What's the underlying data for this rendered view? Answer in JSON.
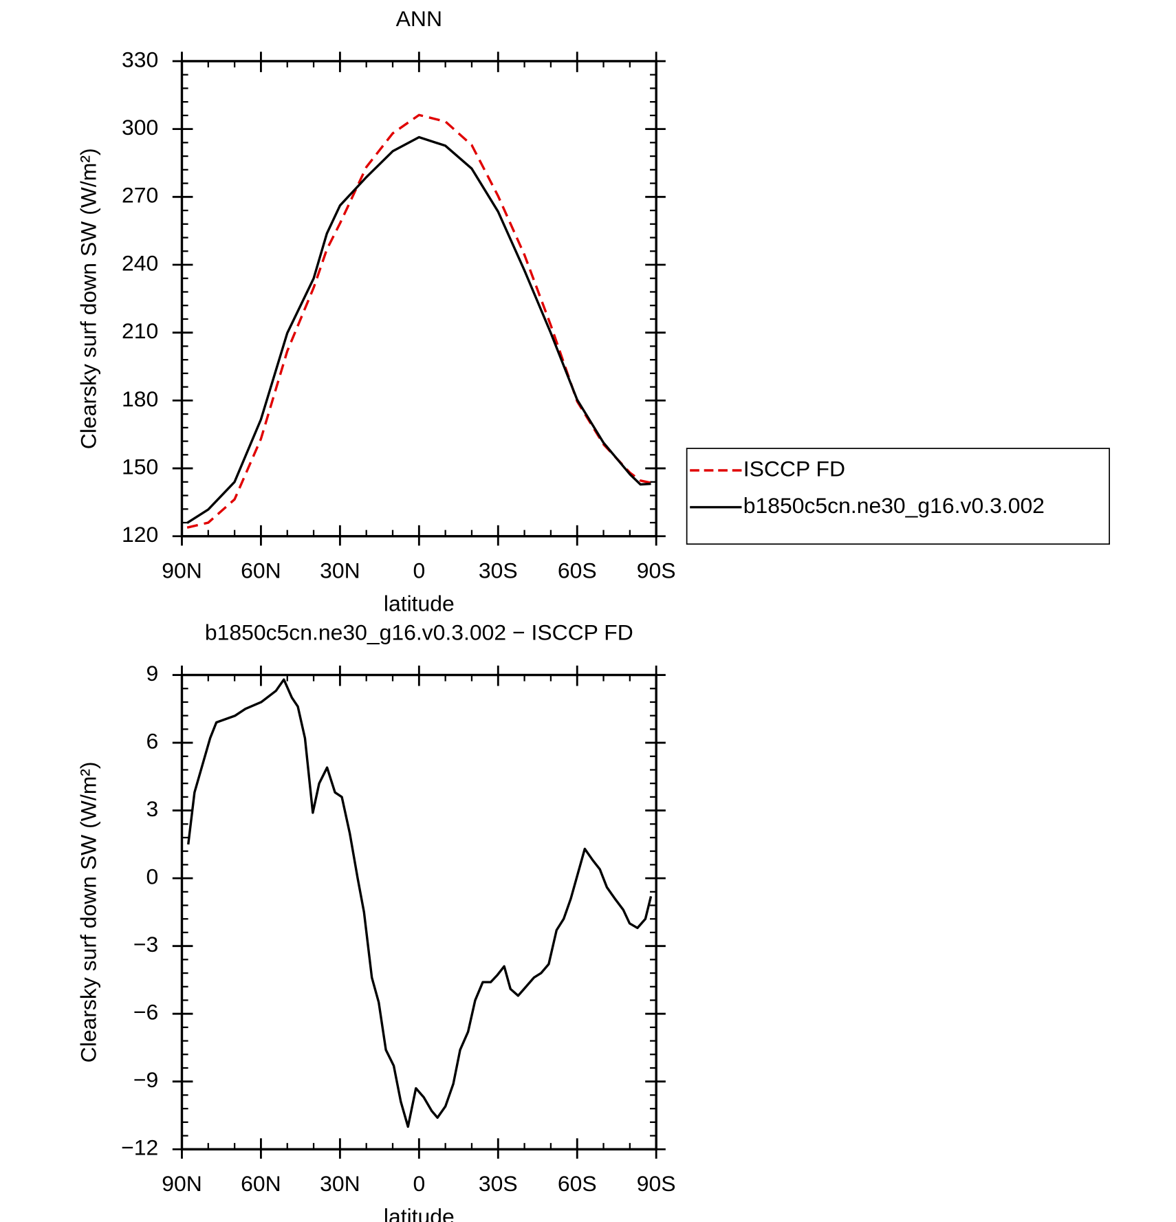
{
  "chart_data": [
    {
      "type": "line",
      "title": "ANN",
      "xlabel": "latitude",
      "ylabel": "Clearsky surf down SW (W/m²)",
      "x": [
        88,
        80,
        70,
        60,
        50,
        40,
        35,
        30,
        20,
        10,
        0,
        -10,
        -20,
        -30,
        -40,
        -50,
        -60,
        -70,
        -80,
        -84,
        -88
      ],
      "series": [
        {
          "name": "ISCCP FD",
          "color": "#e00000",
          "dash": true,
          "values": [
            123.8,
            126,
            136.3,
            163,
            201.8,
            229.9,
            246.8,
            258.3,
            283.2,
            298.1,
            306.2,
            303.3,
            292.9,
            270.4,
            244.4,
            213.2,
            179.6,
            160.6,
            148.1,
            144.6,
            143.6
          ]
        },
        {
          "name": "b1850c5cn.ne30_g16.v0.3.002",
          "color": "#000000",
          "dash": false,
          "values": [
            125.9,
            131.8,
            144,
            171.6,
            209.8,
            234,
            253.8,
            266.2,
            278.7,
            290.2,
            296.4,
            292.6,
            282.5,
            263.5,
            237.5,
            209.8,
            180.3,
            161.3,
            147.4,
            142.9,
            143.2
          ]
        }
      ],
      "xlim": [
        90,
        -90
      ],
      "xticks": [
        {
          "value": 90,
          "label": "90N"
        },
        {
          "value": 60,
          "label": "60N"
        },
        {
          "value": 30,
          "label": "30N"
        },
        0,
        {
          "value": -30,
          "label": "30S"
        },
        {
          "value": -60,
          "label": "60S"
        },
        {
          "value": -90,
          "label": "90S"
        }
      ],
      "ylim": [
        120,
        330
      ],
      "yticks": [
        120,
        150,
        180,
        210,
        240,
        270,
        300,
        330
      ],
      "legend": "right"
    },
    {
      "type": "line",
      "title": "b1850c5cn.ne30_g16.v0.3.002 − ISCCP FD",
      "xlabel": "latitude",
      "ylabel": "Clearsky surf down SW (W/m²)",
      "x": [
        87.6,
        85.2,
        79.3,
        76.9,
        69.8,
        65.9,
        59.9,
        54.3,
        51.3,
        48.3,
        46.0,
        43.3,
        40.3,
        37.9,
        34.9,
        31.9,
        29.3,
        26.3,
        23.3,
        20.9,
        17.9,
        15.3,
        12.6,
        9.6,
        6.9,
        4.2,
        1.2,
        -1.8,
        -4.8,
        -7.0,
        -10.0,
        -13.0,
        -15.6,
        -18.6,
        -21.3,
        -24.2,
        -27.2,
        -29.6,
        -32.3,
        -34.7,
        -37.6,
        -40.6,
        -43.6,
        -46.3,
        -49.2,
        -52.2,
        -54.9,
        -57.6,
        -62.9,
        -65.9,
        -68.6,
        -71.3,
        -74.3,
        -77.5,
        -79.9,
        -82.9,
        -85.9,
        -88.0
      ],
      "values": [
        1.5,
        3.8,
        6.2,
        6.9,
        7.2,
        7.5,
        7.8,
        8.3,
        8.8,
        8.0,
        7.6,
        6.2,
        2.9,
        4.2,
        4.9,
        3.8,
        3.6,
        2.0,
        0.0,
        -1.5,
        -4.4,
        -5.5,
        -7.6,
        -8.3,
        -9.9,
        -11.0,
        -9.3,
        -9.7,
        -10.3,
        -10.6,
        -10.1,
        -9.1,
        -7.6,
        -6.8,
        -5.4,
        -4.6,
        -4.6,
        -4.3,
        -3.9,
        -4.9,
        -5.2,
        -4.8,
        -4.4,
        -4.2,
        -3.8,
        -2.3,
        -1.8,
        -0.9,
        1.3,
        0.8,
        0.4,
        -0.4,
        -0.9,
        -1.4,
        -2.0,
        -2.2,
        -1.8,
        -0.8
      ],
      "color": "#000000",
      "xlim": [
        90,
        -90
      ],
      "xticks": [
        {
          "value": 90,
          "label": "90N"
        },
        {
          "value": 60,
          "label": "60N"
        },
        {
          "value": 30,
          "label": "30N"
        },
        0,
        {
          "value": -30,
          "label": "30S"
        },
        {
          "value": -60,
          "label": "60S"
        },
        {
          "value": -90,
          "label": "90S"
        }
      ],
      "ylim": [
        -12,
        9
      ],
      "yticks": [
        {
          "value": -12,
          "label": "−12"
        },
        {
          "value": -9,
          "label": "−9"
        },
        {
          "value": -6,
          "label": "−6"
        },
        {
          "value": -3,
          "label": "−3"
        },
        0,
        3,
        6,
        9
      ]
    }
  ]
}
